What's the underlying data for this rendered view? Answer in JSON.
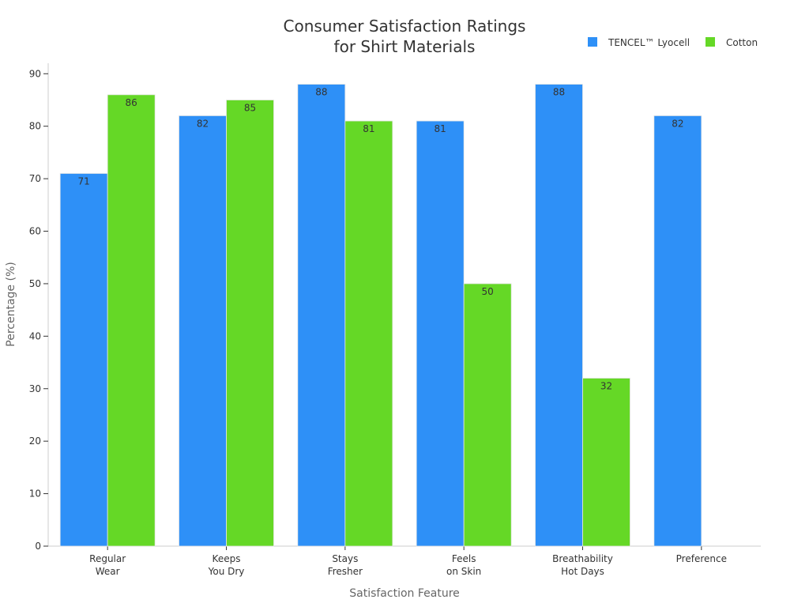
{
  "chart_data": {
    "type": "bar",
    "title": [
      "Consumer Satisfaction Ratings",
      "for Shirt Materials"
    ],
    "xlabel": "Satisfaction Feature",
    "ylabel": "Percentage (%)",
    "ylim": [
      0,
      92
    ],
    "yticks": [
      0,
      10,
      20,
      30,
      40,
      50,
      60,
      70,
      80,
      90
    ],
    "categories": [
      [
        "Regular",
        "Wear"
      ],
      [
        "Keeps",
        "You Dry"
      ],
      [
        "Stays",
        "Fresher"
      ],
      [
        "Feels",
        "on Skin"
      ],
      [
        "Breathability",
        "Hot Days"
      ],
      [
        "Preference"
      ]
    ],
    "series": [
      {
        "name": "TENCEL™ Lyocell",
        "color": "#2e90f7",
        "values": [
          71,
          82,
          88,
          81,
          88,
          82
        ]
      },
      {
        "name": "Cotton",
        "color": "#65d826",
        "values": [
          86,
          85,
          81,
          50,
          32,
          null
        ]
      }
    ],
    "legend": "top-right",
    "grid": false
  }
}
